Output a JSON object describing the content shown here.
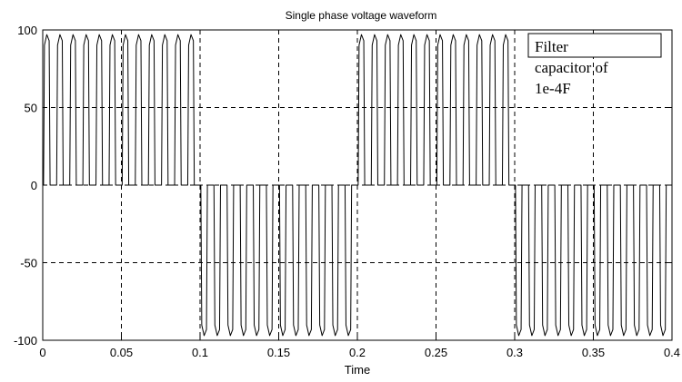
{
  "chart_data": {
    "type": "line",
    "title": "Single phase voltage waveform",
    "xlabel": "Time",
    "ylabel": "",
    "xlim": [
      0,
      0.4
    ],
    "ylim": [
      -100,
      100
    ],
    "xticks": [
      0,
      0.05,
      0.1,
      0.15,
      0.2,
      0.25,
      0.3,
      0.35,
      0.4
    ],
    "xtick_labels": [
      "0",
      "0.05",
      "0.1",
      "0.15",
      "0.2",
      "0.25",
      "0.3",
      "0.35",
      "0.4"
    ],
    "yticks": [
      -100,
      -50,
      0,
      50,
      100
    ],
    "ytick_labels": [
      "-100",
      "-50",
      "0",
      "50",
      "100"
    ],
    "grid": true,
    "fundamental_period": 0.2,
    "pulses_per_half_cycle": 12,
    "pulse_amplitude": 97,
    "annotation": {
      "lines": [
        "Filter",
        "capacitor of",
        "1e-4F"
      ],
      "position": "top-right"
    }
  }
}
